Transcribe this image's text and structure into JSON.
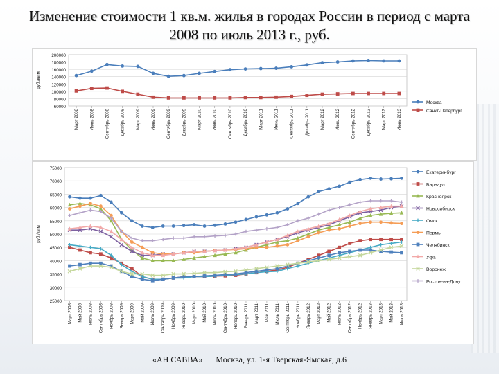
{
  "title": "Изменение стоимости 1 кв.м. жилья в городах России в период с марта 2008 по июль 2013 г., руб.",
  "footer": {
    "company": "«АН САВВА»",
    "address": "Москва, ул. 1-я Тверская-Ямская, д.6"
  },
  "chart_data": [
    {
      "type": "line",
      "ylabel": "руб./кв.м",
      "ylim": [
        60000,
        200000
      ],
      "yticks": [
        60000,
        80000,
        100000,
        120000,
        140000,
        160000,
        180000,
        200000
      ],
      "categories": [
        "Март 2008",
        "Июнь 2008",
        "Сентябрь 2008",
        "Декабрь 2008",
        "Март 2009",
        "Июнь 2009",
        "Сентябрь 2009",
        "Декабрь 2009",
        "Март 2010",
        "Июнь 2010",
        "Сентябрь 2010",
        "Декабрь 2010",
        "Март 2011",
        "Июнь 2011",
        "Сентябрь 2011",
        "Декабрь 2011",
        "Март 2012",
        "Июнь 2012",
        "Сентябрь 2012",
        "Декабрь 2012",
        "Март 2013",
        "Июнь 2013"
      ],
      "legend_position": "right",
      "series": [
        {
          "name": "Москва",
          "color": "#4a7ebb",
          "values": [
            143000,
            155000,
            173000,
            169000,
            168000,
            149000,
            141000,
            143000,
            149000,
            154000,
            159000,
            161000,
            162000,
            163000,
            167000,
            172000,
            178000,
            180000,
            183000,
            184000,
            183000,
            183000
          ]
        },
        {
          "name": "Санкт-Петербург",
          "color": "#be4b48",
          "values": [
            101000,
            108000,
            109000,
            100000,
            92000,
            84000,
            82000,
            82000,
            82000,
            82000,
            82000,
            83000,
            83000,
            84000,
            86000,
            89000,
            92000,
            93000,
            94000,
            94000,
            94000,
            94000
          ]
        }
      ]
    },
    {
      "type": "line",
      "ylabel": "руб./кв.м",
      "ylim": [
        25000,
        75000
      ],
      "yticks": [
        25000,
        30000,
        35000,
        40000,
        45000,
        50000,
        55000,
        60000,
        65000,
        70000,
        75000
      ],
      "categories": [
        "Март 2008",
        "Май 2008",
        "Июль 2008",
        "Сентябрь 2008",
        "Ноябрь 2008",
        "Январь 2009",
        "Март 2009",
        "Май 2009",
        "Июль 2009",
        "Сентябрь 2009",
        "Ноябрь 2009",
        "Январь 2010",
        "Март 2010",
        "Май 2010",
        "Июль 2010",
        "Сентябрь 2010",
        "Ноябрь 2010",
        "Январь 2011",
        "Март 2011",
        "Май 2011",
        "Июль 2011",
        "Сентябрь 2011",
        "Ноябрь 2011",
        "Январь 2012",
        "Март 2012",
        "Май 2012",
        "Июль 2012",
        "Сентябрь 2012",
        "Ноябрь 2012",
        "Январь 2013",
        "Март 2013",
        "Май 2013",
        "Июль 2013"
      ],
      "legend_position": "right",
      "series": [
        {
          "name": "Екатеринбург",
          "color": "#4a7ebb",
          "values": [
            64000,
            63500,
            63500,
            64500,
            62000,
            58000,
            55000,
            53000,
            52500,
            53000,
            53000,
            53200,
            53500,
            53000,
            53300,
            53800,
            54500,
            55500,
            56500,
            57200,
            58000,
            59500,
            61500,
            64000,
            66000,
            67000,
            68000,
            69500,
            70500,
            71000,
            70700,
            70800,
            71000
          ]
        },
        {
          "name": "Барнаул",
          "color": "#be4b48",
          "values": [
            45000,
            44000,
            43000,
            42500,
            41000,
            39000,
            37000,
            34000,
            33000,
            33000,
            33500,
            34000,
            34000,
            34000,
            34200,
            34300,
            34500,
            35000,
            35500,
            36000,
            36500,
            37500,
            39000,
            40500,
            42000,
            43500,
            45000,
            46500,
            47500,
            48000,
            48000,
            48000,
            48000
          ]
        },
        {
          "name": "Красноярск",
          "color": "#98b954",
          "values": [
            61000,
            61500,
            61000,
            59500,
            55000,
            48000,
            44000,
            41000,
            40000,
            40000,
            40000,
            40500,
            41000,
            41500,
            42000,
            42500,
            43000,
            44000,
            45000,
            46000,
            47000,
            47500,
            48500,
            50000,
            51500,
            52500,
            53500,
            54500,
            56000,
            57000,
            57500,
            57800,
            58000
          ]
        },
        {
          "name": "Новосибирск",
          "color": "#7d60a0",
          "values": [
            51500,
            51500,
            52000,
            51000,
            49000,
            46000,
            43500,
            42000,
            42000,
            42500,
            42500,
            43000,
            43500,
            43500,
            43800,
            44000,
            44500,
            45000,
            46000,
            47000,
            48000,
            49000,
            50500,
            51500,
            52500,
            53500,
            55000,
            56500,
            58000,
            58500,
            59000,
            60000,
            60500
          ]
        },
        {
          "name": "Омск",
          "color": "#46aac5",
          "values": [
            46000,
            45500,
            45000,
            44500,
            42000,
            38500,
            36000,
            34000,
            33000,
            33000,
            33500,
            33500,
            34000,
            34000,
            34200,
            34500,
            34800,
            35000,
            35500,
            35800,
            36000,
            37000,
            38000,
            39000,
            40000,
            41000,
            42000,
            43000,
            44000,
            45000,
            46000,
            46500,
            47000
          ]
        },
        {
          "name": "Пермь",
          "color": "#f59d56",
          "values": [
            59500,
            60500,
            61500,
            60500,
            57000,
            51000,
            47000,
            45000,
            43000,
            42500,
            42500,
            43000,
            43000,
            43500,
            43800,
            44000,
            44200,
            44500,
            45000,
            45000,
            45500,
            46000,
            47500,
            49000,
            50500,
            51500,
            52000,
            53000,
            54000,
            54500,
            54500,
            54200,
            54000
          ]
        },
        {
          "name": "Челябинск",
          "color": "#4f81bd",
          "values": [
            38000,
            38500,
            39000,
            39000,
            38000,
            36000,
            34000,
            33000,
            32500,
            33000,
            33500,
            34000,
            34000,
            34300,
            34500,
            34800,
            35000,
            35500,
            36000,
            36500,
            37000,
            38000,
            39000,
            40000,
            41000,
            42000,
            43000,
            43500,
            44000,
            44000,
            43500,
            43200,
            43000
          ]
        },
        {
          "name": "Уфа",
          "color": "#f2a9a8",
          "values": [
            52000,
            52500,
            53000,
            52500,
            51000,
            48000,
            45000,
            43000,
            42000,
            42000,
            42500,
            43000,
            43500,
            43500,
            43800,
            44000,
            44500,
            45000,
            46000,
            47000,
            48000,
            49500,
            51000,
            52000,
            53000,
            54000,
            55500,
            57000,
            58500,
            59500,
            60000,
            60500,
            60500
          ]
        },
        {
          "name": "Воронеж",
          "color": "#c4d79b",
          "values": [
            36000,
            37000,
            38000,
            38000,
            37500,
            36000,
            35000,
            35000,
            34500,
            34500,
            35000,
            35000,
            35200,
            35500,
            35500,
            35800,
            36000,
            36500,
            37000,
            37500,
            38000,
            38500,
            39000,
            39500,
            40000,
            40500,
            41000,
            41500,
            42000,
            43000,
            44000,
            45000,
            45500
          ]
        },
        {
          "name": "Ростов-на-Дону",
          "color": "#b3a2c7",
          "values": [
            57000,
            58000,
            59000,
            58500,
            56000,
            51000,
            48500,
            47500,
            47500,
            48000,
            48500,
            48500,
            49000,
            49000,
            49300,
            49500,
            50000,
            51000,
            51500,
            52000,
            52500,
            53500,
            55000,
            56000,
            57500,
            59000,
            60000,
            61000,
            62000,
            62500,
            62500,
            62500,
            62000
          ]
        }
      ]
    }
  ]
}
